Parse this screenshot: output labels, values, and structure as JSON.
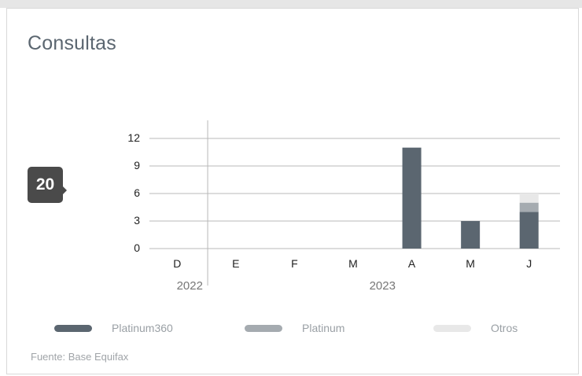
{
  "card": {
    "title": "Consultas",
    "badge_value": "20",
    "source": "Fuente: Base Equifax"
  },
  "legend": [
    {
      "label": "Platinum360",
      "color": "#5b6670"
    },
    {
      "label": "Platinum",
      "color": "#a5abb0"
    },
    {
      "label": "Otros",
      "color": "#e8e8e8"
    }
  ],
  "chart_data": {
    "type": "bar",
    "stacked": true,
    "categories": [
      "D",
      "E",
      "F",
      "M",
      "A",
      "M",
      "J"
    ],
    "year_labels": [
      {
        "label": "2022",
        "categories": [
          "D"
        ]
      },
      {
        "label": "2023",
        "categories": [
          "E",
          "F",
          "M",
          "A",
          "M",
          "J"
        ]
      }
    ],
    "series": [
      {
        "name": "Platinum360",
        "color": "#5b6670",
        "values": [
          0,
          0,
          0,
          0,
          11,
          3,
          4
        ]
      },
      {
        "name": "Platinum",
        "color": "#a5abb0",
        "values": [
          0,
          0,
          0,
          0,
          0,
          0,
          1
        ]
      },
      {
        "name": "Otros",
        "color": "#e8e8e8",
        "values": [
          0,
          0,
          0,
          0,
          0,
          0,
          1
        ]
      }
    ],
    "yticks": [
      0,
      3,
      6,
      9,
      12
    ],
    "ylim": [
      0,
      12
    ],
    "grid": true,
    "legend_position": "bottom",
    "title": "",
    "xlabel": "",
    "ylabel": ""
  }
}
